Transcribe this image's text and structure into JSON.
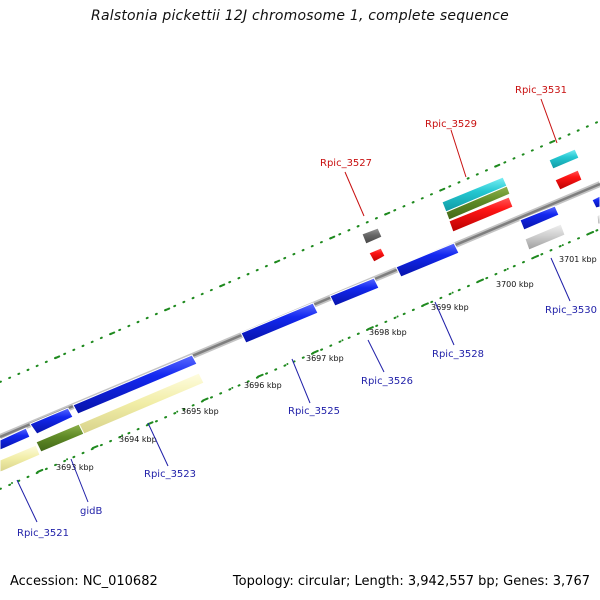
{
  "title": "Ralstonia pickettii 12J chromosome 1, complete sequence",
  "accession_text": "Accession: NC_010682",
  "summary_text": "Topology: circular; Length: 3,942,557 bp; Genes: 3,767",
  "colors": {
    "backbone": "#8c8c8c",
    "tick": "#1f8a1f",
    "blue_gene": "#0b1fd6",
    "red_gene": "#e10f0f",
    "cyan_gene": "#22c8d0",
    "olive_gene": "#5f8a26",
    "yellow_gene": "#f1eda6",
    "gray_gene": "#bdbdbd",
    "dark_gray_gene": "#666666",
    "blue_label": "#1f1fa8",
    "red_label": "#c81010"
  },
  "scale_labels": [
    "3693 kbp",
    "3694 kbp",
    "3695 kbp",
    "3696 kbp",
    "3697 kbp",
    "3698 kbp",
    "3699 kbp",
    "3700 kbp",
    "3701 kbp"
  ],
  "gene_labels": {
    "rpic_3531": "Rpic_3531",
    "rpic_3529": "Rpic_3529",
    "rpic_3527": "Rpic_3527",
    "rpic_3530": "Rpic_3530",
    "rpic_3528": "Rpic_3528",
    "rpic_3526": "Rpic_3526",
    "rpic_3525": "Rpic_3525",
    "rpic_3523": "Rpic_3523",
    "gidb": "gidB",
    "rpic_3521": "Rpic_3521"
  }
}
